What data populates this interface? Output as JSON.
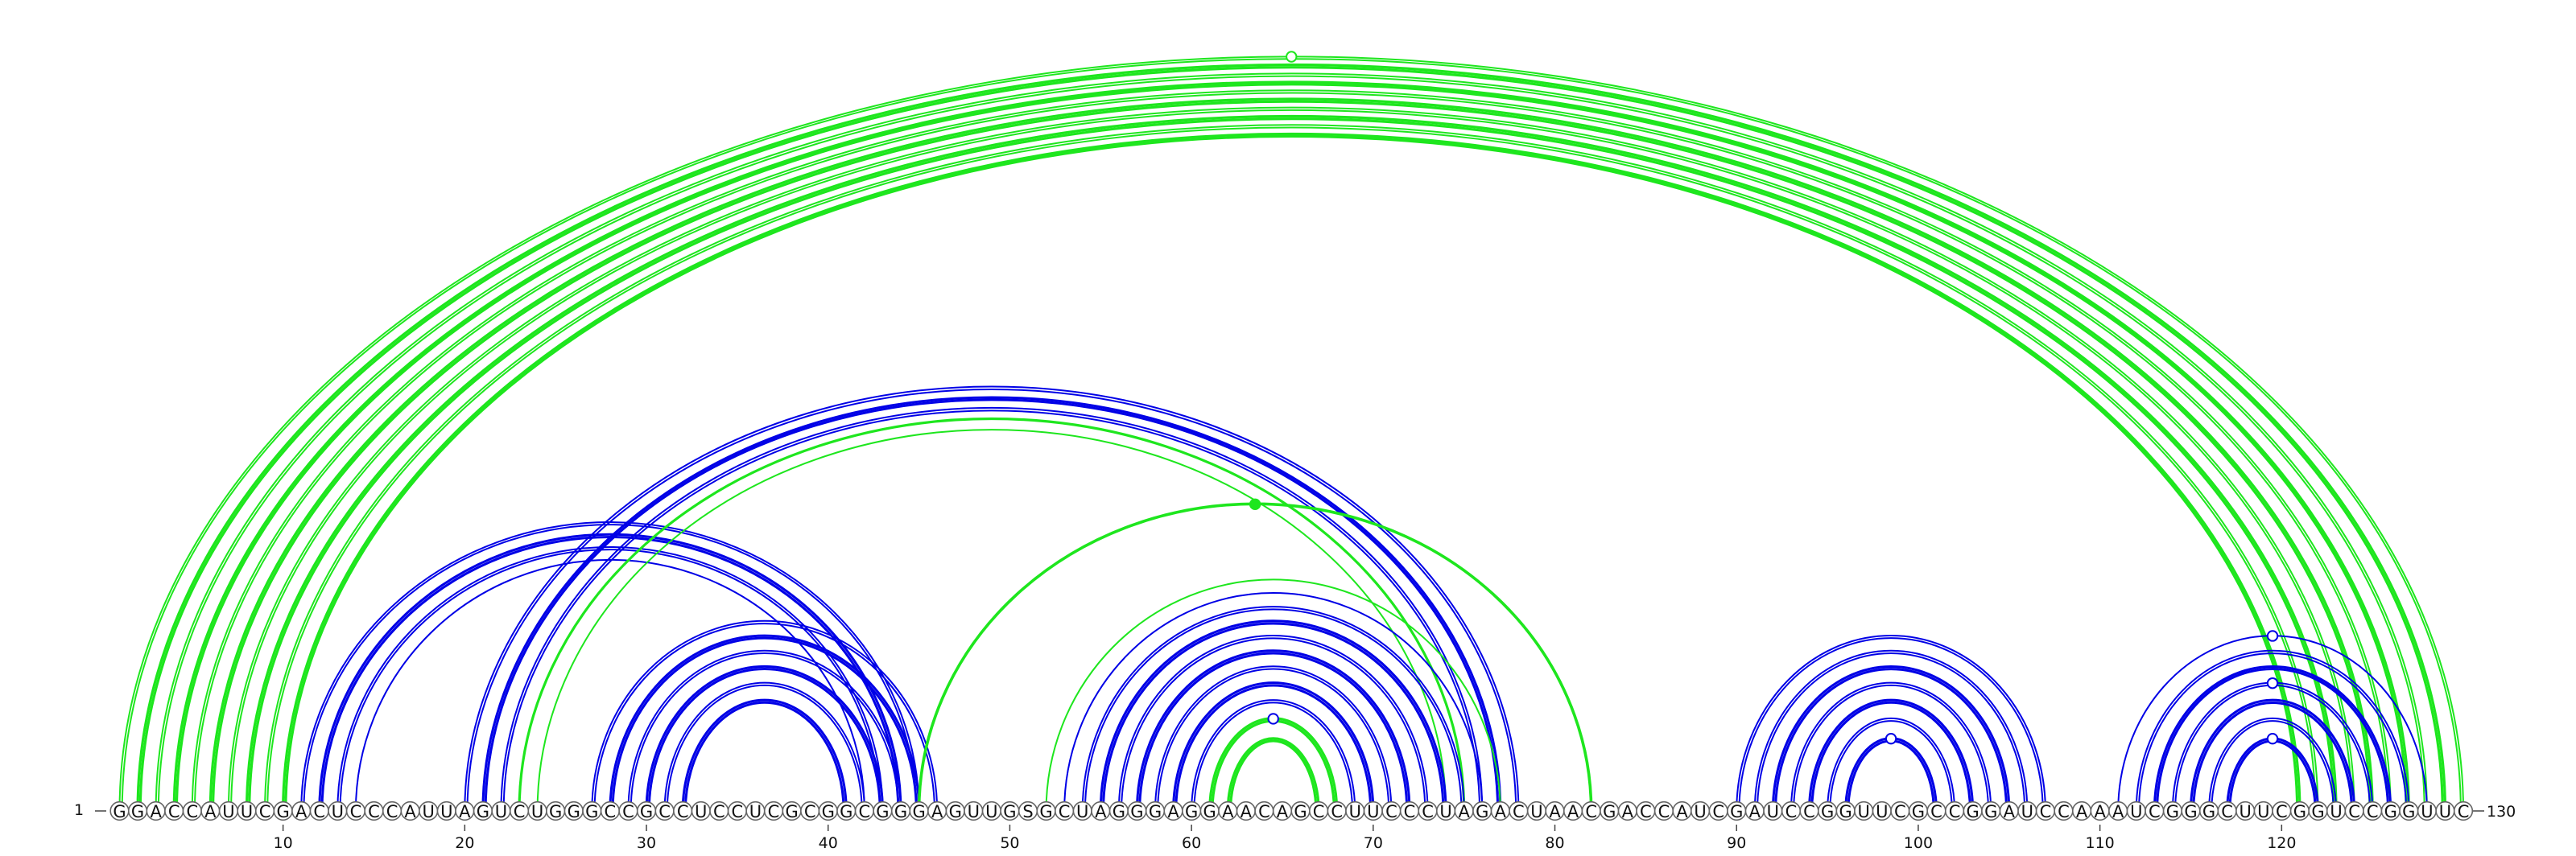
{
  "sequence": "GGACCAUUCGACUCCCAUUAGUCUGGGCCGCCUCCUCGCGGCGGGAGUUGSGCUAGGGAGGAACAGCCUUCCCUAGACUAACGACCAUCGAUCCGGUUCGCCGGAUCCAAAUCGGGCUUCGGUCCGGUUC",
  "start_label": "1",
  "end_label": "130",
  "ticks": [
    10,
    20,
    30,
    40,
    50,
    60,
    70,
    80,
    90,
    100,
    110,
    120
  ],
  "colors": {
    "blue": "#0000e6",
    "green": "#1ee61e"
  },
  "arcs": [
    {
      "i": 1,
      "j": 130,
      "color": "green",
      "w": 2,
      "d": true
    },
    {
      "i": 2,
      "j": 129,
      "color": "green",
      "w": 3.2,
      "d": true
    },
    {
      "i": 3,
      "j": 128,
      "color": "green",
      "w": 2,
      "d": true
    },
    {
      "i": 4,
      "j": 127,
      "color": "green",
      "w": 3.2,
      "d": true
    },
    {
      "i": 5,
      "j": 126,
      "color": "green",
      "w": 2,
      "d": true
    },
    {
      "i": 6,
      "j": 125,
      "color": "green",
      "w": 3.2,
      "d": true
    },
    {
      "i": 7,
      "j": 124,
      "color": "green",
      "w": 2,
      "d": true
    },
    {
      "i": 8,
      "j": 123,
      "color": "green",
      "w": 3.2,
      "d": true
    },
    {
      "i": 9,
      "j": 122,
      "color": "green",
      "w": 2,
      "d": true
    },
    {
      "i": 10,
      "j": 121,
      "color": "green",
      "w": 3.2,
      "d": true
    },
    {
      "i": 11,
      "j": 45,
      "color": "blue",
      "w": 2,
      "d": true
    },
    {
      "i": 12,
      "j": 44,
      "color": "blue",
      "w": 3,
      "d": true
    },
    {
      "i": 13,
      "j": 43,
      "color": "blue",
      "w": 2,
      "d": true
    },
    {
      "i": 14,
      "j": 42,
      "color": "blue",
      "w": 2,
      "d": false
    },
    {
      "i": 20,
      "j": 78,
      "color": "blue",
      "w": 2,
      "d": true
    },
    {
      "i": 21,
      "j": 77,
      "color": "blue",
      "w": 3,
      "d": true
    },
    {
      "i": 22,
      "j": 76,
      "color": "blue",
      "w": 2,
      "d": true
    },
    {
      "i": 23,
      "j": 75,
      "color": "green",
      "w": 3.2,
      "d": false
    },
    {
      "i": 24,
      "j": 74,
      "color": "green",
      "w": 2,
      "d": false
    },
    {
      "i": 27,
      "j": 46,
      "color": "blue",
      "w": 2,
      "d": true
    },
    {
      "i": 28,
      "j": 45,
      "color": "blue",
      "w": 3,
      "d": true
    },
    {
      "i": 29,
      "j": 44,
      "color": "blue",
      "w": 2,
      "d": true
    },
    {
      "i": 30,
      "j": 43,
      "color": "blue",
      "w": 3,
      "d": true
    },
    {
      "i": 31,
      "j": 42,
      "color": "blue",
      "w": 2,
      "d": true
    },
    {
      "i": 32,
      "j": 41,
      "color": "blue",
      "w": 3,
      "d": true
    },
    {
      "i": 45,
      "j": 82,
      "color": "green",
      "w": 3.6,
      "d": false
    },
    {
      "i": 52,
      "j": 77,
      "color": "green",
      "w": 2,
      "d": false
    },
    {
      "i": 53,
      "j": 76,
      "color": "blue",
      "w": 2,
      "d": false
    },
    {
      "i": 54,
      "j": 75,
      "color": "blue",
      "w": 2,
      "d": true
    },
    {
      "i": 55,
      "j": 74,
      "color": "blue",
      "w": 3,
      "d": true
    },
    {
      "i": 56,
      "j": 73,
      "color": "blue",
      "w": 2,
      "d": true
    },
    {
      "i": 57,
      "j": 72,
      "color": "blue",
      "w": 3,
      "d": true
    },
    {
      "i": 58,
      "j": 71,
      "color": "blue",
      "w": 2,
      "d": true
    },
    {
      "i": 59,
      "j": 70,
      "color": "blue",
      "w": 3,
      "d": true
    },
    {
      "i": 60,
      "j": 69,
      "color": "blue",
      "w": 2,
      "d": true
    },
    {
      "i": 61,
      "j": 68,
      "color": "green",
      "w": 3.2,
      "d": true
    },
    {
      "i": 62,
      "j": 67,
      "color": "green",
      "w": 3.2,
      "d": true
    },
    {
      "i": 90,
      "j": 107,
      "color": "blue",
      "w": 2,
      "d": true
    },
    {
      "i": 91,
      "j": 106,
      "color": "blue",
      "w": 2,
      "d": true
    },
    {
      "i": 92,
      "j": 105,
      "color": "blue",
      "w": 3,
      "d": true
    },
    {
      "i": 93,
      "j": 104,
      "color": "blue",
      "w": 2,
      "d": true
    },
    {
      "i": 94,
      "j": 103,
      "color": "blue",
      "w": 3,
      "d": true
    },
    {
      "i": 95,
      "j": 102,
      "color": "blue",
      "w": 2,
      "d": true
    },
    {
      "i": 96,
      "j": 101,
      "color": "blue",
      "w": 3,
      "d": true
    },
    {
      "i": 111,
      "j": 128,
      "color": "blue",
      "w": 2,
      "d": false
    },
    {
      "i": 112,
      "j": 127,
      "color": "blue",
      "w": 2,
      "d": true
    },
    {
      "i": 113,
      "j": 126,
      "color": "blue",
      "w": 3,
      "d": true
    },
    {
      "i": 114,
      "j": 125,
      "color": "blue",
      "w": 2,
      "d": true
    },
    {
      "i": 115,
      "j": 124,
      "color": "blue",
      "w": 3,
      "d": true
    },
    {
      "i": 116,
      "j": 123,
      "color": "blue",
      "w": 2,
      "d": true
    },
    {
      "i": 117,
      "j": 122,
      "color": "blue",
      "w": 3,
      "d": true
    }
  ],
  "markers": [
    {
      "i": 1,
      "j": 130,
      "color": "green",
      "filled": false
    },
    {
      "i": 45,
      "j": 82,
      "color": "green",
      "filled": true
    },
    {
      "i": 61,
      "j": 68,
      "color": "blue",
      "filled": false
    },
    {
      "i": 96,
      "j": 101,
      "color": "blue",
      "filled": false
    },
    {
      "i": 111,
      "j": 128,
      "color": "blue",
      "filled": false
    },
    {
      "i": 114,
      "j": 125,
      "color": "blue",
      "filled": false
    },
    {
      "i": 117,
      "j": 122,
      "color": "blue",
      "filled": false
    }
  ]
}
